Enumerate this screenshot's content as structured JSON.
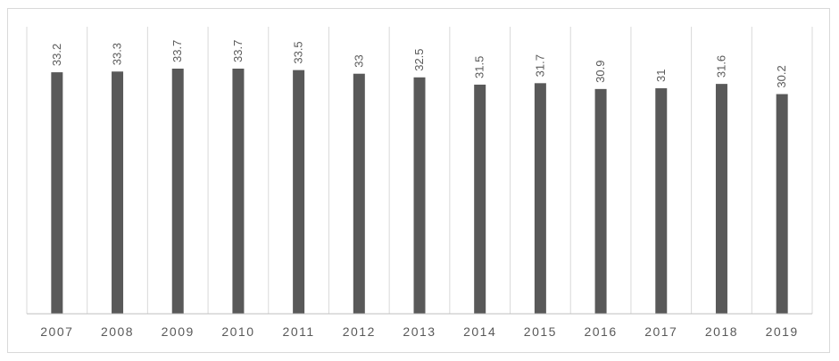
{
  "chart_data": {
    "type": "bar",
    "categories": [
      "2007",
      "2008",
      "2009",
      "2010",
      "2011",
      "2012",
      "2013",
      "2014",
      "2015",
      "2016",
      "2017",
      "2018",
      "2019"
    ],
    "values": [
      33.2,
      33.3,
      33.7,
      33.7,
      33.5,
      33,
      32.5,
      31.5,
      31.7,
      30.9,
      31,
      31.6,
      30.2
    ],
    "data_labels": [
      "33.2",
      "33.3",
      "33.7",
      "33.7",
      "33.5",
      "33",
      "32.5",
      "31.5",
      "31.7",
      "30.9",
      "31",
      "31.6",
      "30.2"
    ],
    "title": "",
    "xlabel": "",
    "ylabel": "",
    "grid": "vertical category separators",
    "legend": "none",
    "colors": {
      "bar": "#595959",
      "grid": "#d9d9d9",
      "axis": "#bfbfbf",
      "text": "#595959"
    }
  }
}
